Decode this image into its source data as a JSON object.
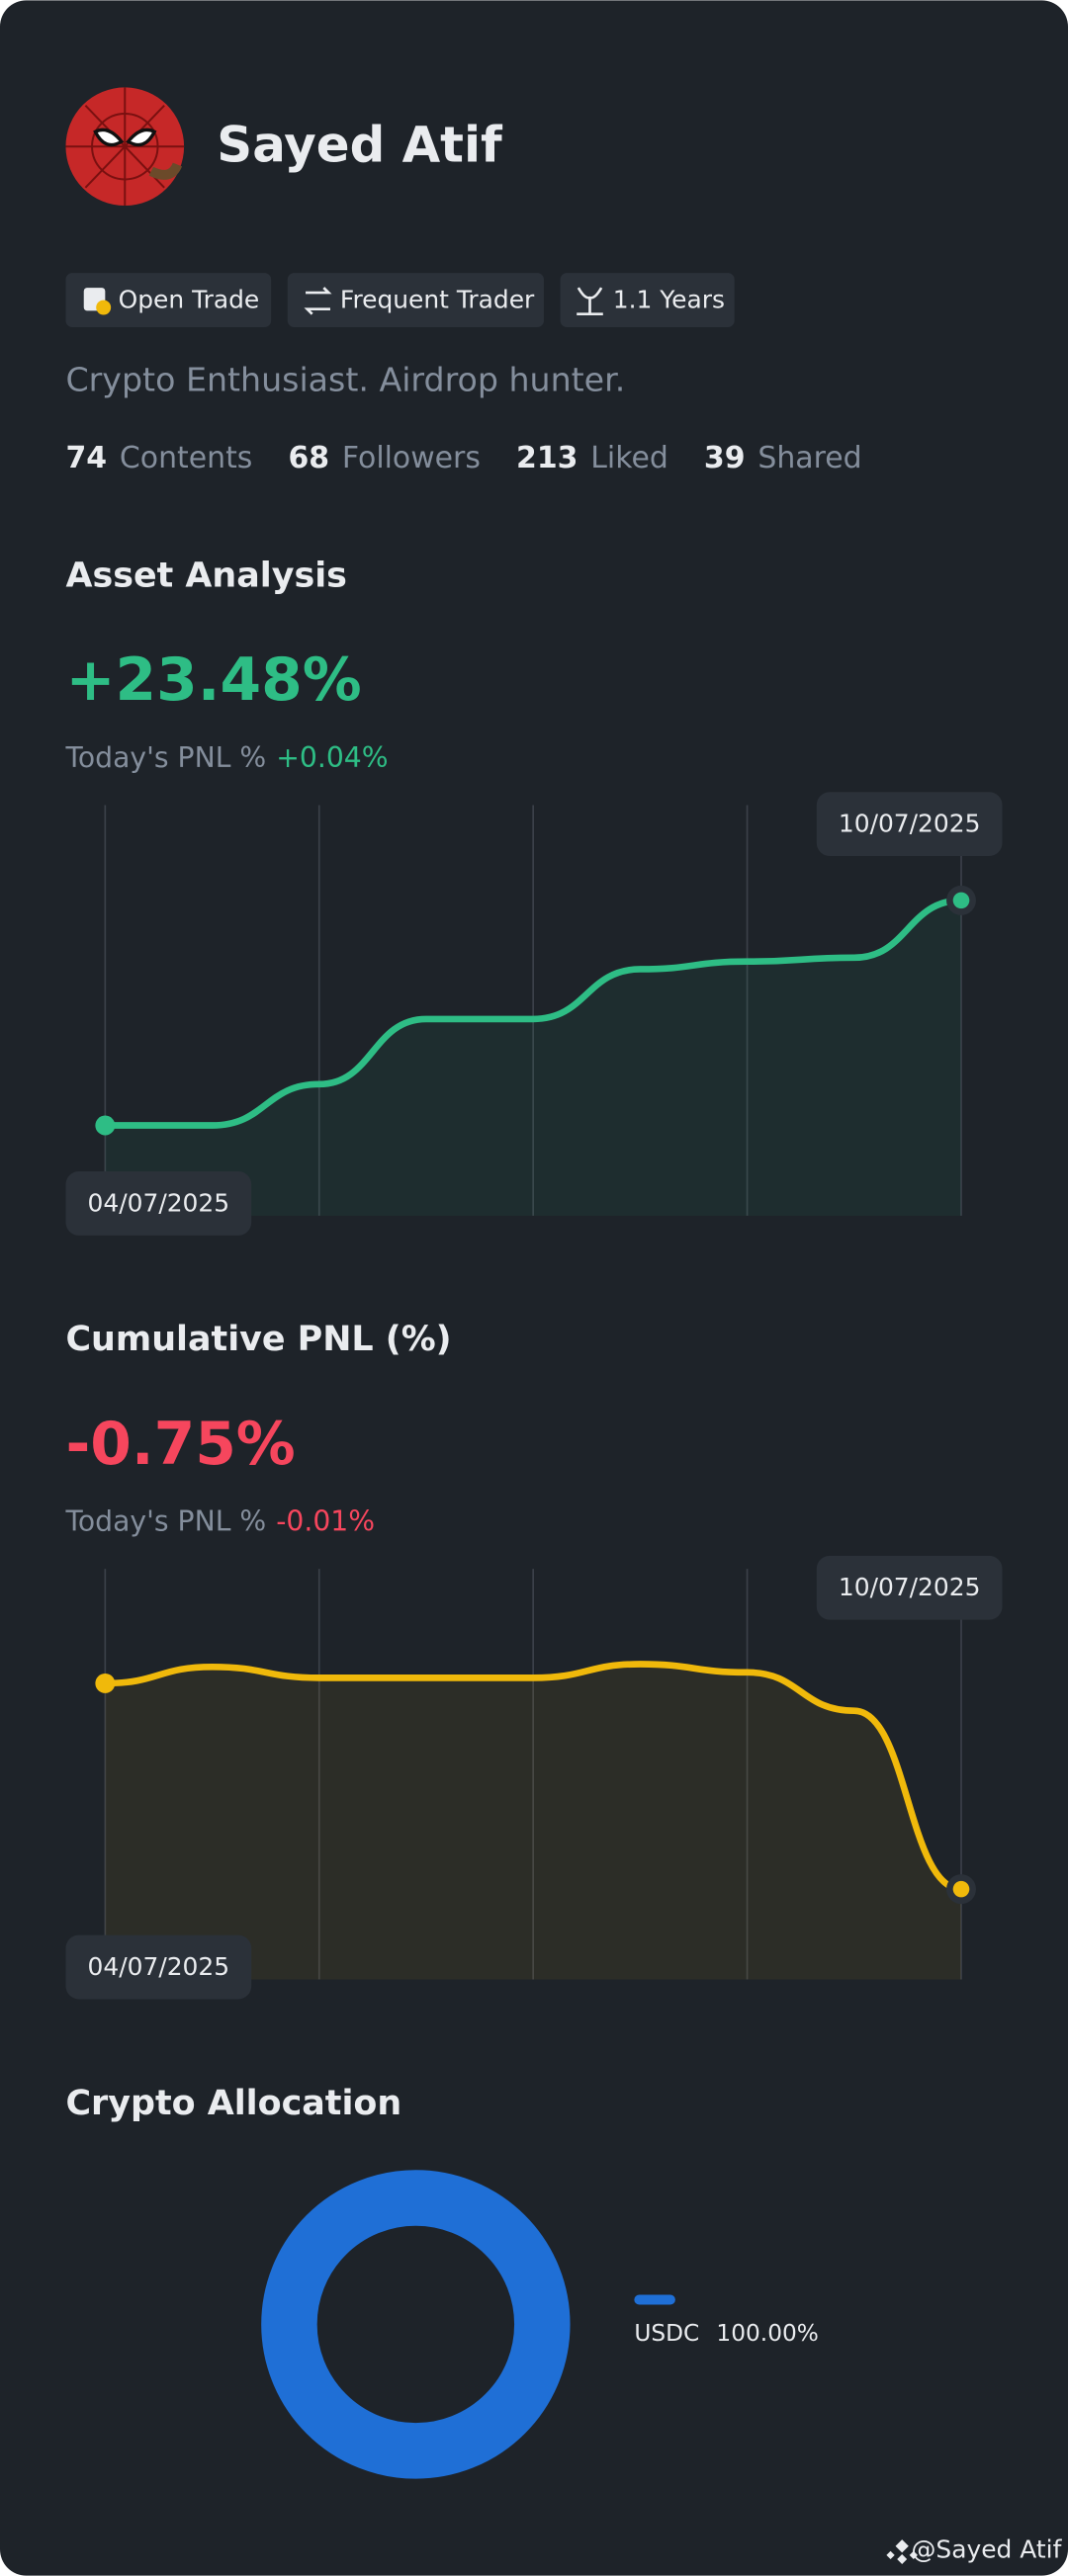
{
  "profile": {
    "name": "Sayed Atif",
    "badges": [
      "Open Trade",
      "Frequent Trader",
      "1.1 Years"
    ],
    "bio": "Crypto Enthusiast. Airdrop hunter.",
    "stats": [
      {
        "value": 74,
        "label": "Contents"
      },
      {
        "value": 68,
        "label": "Followers"
      },
      {
        "value": 213,
        "label": "Liked"
      },
      {
        "value": 39,
        "label": "Shared"
      }
    ]
  },
  "chart_data": [
    {
      "type": "line",
      "title": "Asset Analysis",
      "headline": "+23.48%",
      "headline_color": "#2ebd85",
      "pnl_label": "Today's PNL %",
      "pnl_value": "+0.04%",
      "categories": [
        "04/07/2025",
        null,
        null,
        null,
        null,
        null,
        null,
        null,
        "10/07/2025"
      ],
      "values": [
        0,
        0,
        4.3,
        11.1,
        11.1,
        16.3,
        17.1,
        17.5,
        23.48
      ],
      "color": "#2ebd85"
    },
    {
      "type": "line",
      "title": "Cumulative PNL (%)",
      "headline": "-0.75%",
      "headline_color": "#f6465d",
      "pnl_label": "Today's PNL %",
      "pnl_value": "-0.01%",
      "categories": [
        "04/07/2025",
        null,
        null,
        null,
        null,
        null,
        null,
        null,
        "10/07/2025"
      ],
      "values": [
        0,
        0.06,
        0.02,
        0.02,
        0.02,
        0.07,
        0.04,
        -0.1,
        -0.75
      ],
      "color": "#f0b90b"
    },
    {
      "type": "pie",
      "title": "Crypto Allocation",
      "categories": [
        "USDC"
      ],
      "values": [
        100
      ],
      "value_labels": [
        "100.00%"
      ],
      "colors": [
        "#1f6fd6"
      ]
    }
  ],
  "watermark": "@Sayed Atif"
}
